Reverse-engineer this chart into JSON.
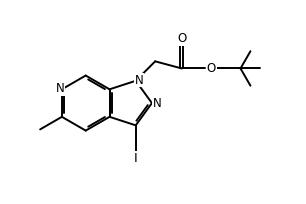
{
  "bg_color": "#ffffff",
  "line_color": "#000000",
  "line_width": 1.4,
  "font_size": 8.5,
  "figsize": [
    3.06,
    2.04
  ],
  "dpi": 100,
  "xlim": [
    0,
    10
  ],
  "ylim": [
    0,
    6.67
  ]
}
